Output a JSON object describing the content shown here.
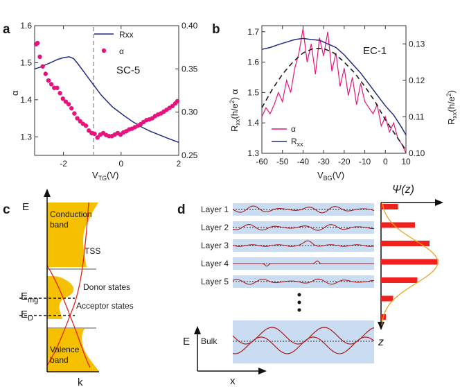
{
  "panels": {
    "a": "a",
    "b": "b",
    "c": "c",
    "d": "d"
  },
  "colors": {
    "rxx": "#1f2a80",
    "alpha": "#e8127c",
    "alpha_b": "#e8127c",
    "dashed": "#1a1a1a",
    "band": "#f5c000",
    "tss": "#e02020",
    "layerbg": "#c9dcf2",
    "wave": "#b01818",
    "bar": "#f0201c",
    "gauss": "#f0a020"
  },
  "chart_data": [
    {
      "id": "a",
      "type": "line+scatter",
      "label": "SC-5",
      "xlabel": "V",
      "xlabel_sub": "TG",
      "xlabel_unit": "(V)",
      "ylabel": "α",
      "y2label": "",
      "xlim": [
        -3,
        2
      ],
      "ylim": [
        1.25,
        1.6
      ],
      "y2lim": [
        0.25,
        0.4
      ],
      "xticks": [
        -2,
        0,
        2
      ],
      "yticks": [
        1.3,
        1.4,
        1.5,
        1.6
      ],
      "yticklabels": [
        "1.3",
        "1.4",
        "1.5",
        "1.6"
      ],
      "y2ticks": [
        0.25,
        0.3,
        0.35,
        0.4
      ],
      "y2ticklabels": [
        "0.25",
        "0.30",
        "0.35",
        "0.40"
      ],
      "vline_x": -0.95,
      "legend": [
        {
          "name": "Rxx",
          "style": "line"
        },
        {
          "name": "α",
          "style": "marker"
        }
      ],
      "series": [
        {
          "name": "Rxx",
          "axis": "right",
          "style": "line",
          "x": [
            -3,
            -2.8,
            -2.6,
            -2.4,
            -2.2,
            -2.0,
            -1.8,
            -1.65,
            -1.5,
            -1.3,
            -1.1,
            -0.9,
            -0.7,
            -0.5,
            -0.3,
            -0.1,
            0.1,
            0.4,
            0.7,
            1.0,
            1.3,
            1.6,
            2.0
          ],
          "y": [
            0.35,
            0.352,
            0.355,
            0.358,
            0.361,
            0.363,
            0.364,
            0.362,
            0.356,
            0.347,
            0.338,
            0.329,
            0.32,
            0.313,
            0.306,
            0.301,
            0.296,
            0.289,
            0.283,
            0.278,
            0.274,
            0.27,
            0.265
          ]
        },
        {
          "name": "α",
          "axis": "left",
          "style": "marker",
          "x": [
            -2.95,
            -2.9,
            -2.82,
            -2.72,
            -2.62,
            -2.52,
            -2.42,
            -2.32,
            -2.22,
            -2.12,
            -2.02,
            -1.92,
            -1.82,
            -1.72,
            -1.62,
            -1.52,
            -1.42,
            -1.32,
            -1.22,
            -1.12,
            -1.02,
            -0.92,
            -0.82,
            -0.72,
            -0.62,
            -0.52,
            -0.42,
            -0.32,
            -0.22,
            -0.12,
            -0.02,
            0.08,
            0.18,
            0.28,
            0.38,
            0.48,
            0.58,
            0.68,
            0.78,
            0.88,
            0.98,
            1.08,
            1.18,
            1.28,
            1.38,
            1.48,
            1.58,
            1.68,
            1.78,
            1.88,
            1.95
          ],
          "y": [
            1.55,
            1.553,
            1.516,
            1.49,
            1.47,
            1.452,
            1.442,
            1.432,
            1.432,
            1.418,
            1.403,
            1.395,
            1.388,
            1.377,
            1.363,
            1.35,
            1.342,
            1.335,
            1.33,
            1.317,
            1.31,
            1.308,
            1.298,
            1.306,
            1.31,
            1.305,
            1.302,
            1.302,
            1.306,
            1.31,
            1.306,
            1.312,
            1.315,
            1.32,
            1.322,
            1.326,
            1.33,
            1.334,
            1.34,
            1.345,
            1.347,
            1.35,
            1.356,
            1.36,
            1.363,
            1.368,
            1.373,
            1.378,
            1.383,
            1.39,
            1.396
          ]
        }
      ]
    },
    {
      "id": "b",
      "type": "line",
      "label": "EC-1",
      "xlabel": "V",
      "xlabel_sub": "BG",
      "xlabel_unit": "(V)",
      "ylabel_top": "α",
      "ylabel_bottom": "R",
      "ylabel_bottom_sub": "xx",
      "ylabel_bottom_unit": "(h/e",
      "y2label": "R",
      "y2label_sub": "xx",
      "y2label_unit": "(h/e",
      "sup": "2",
      "close": ")",
      "xlim": [
        -60,
        10
      ],
      "ylim": [
        1.3,
        1.72
      ],
      "y2lim": [
        0.1,
        0.135
      ],
      "xticks": [
        -60,
        -50,
        -40,
        -30,
        -20,
        -10,
        0,
        10
      ],
      "xticklabels": [
        "-60",
        "-50",
        "-40",
        "-30",
        "-20",
        "-10",
        "0",
        "10"
      ],
      "yticks": [
        1.3,
        1.4,
        1.5,
        1.6,
        1.7
      ],
      "yticklabels": [
        "1.3",
        "1.4",
        "1.5",
        "1.6",
        "1.7"
      ],
      "y2ticks": [
        0.1,
        0.11,
        0.12,
        0.13
      ],
      "y2ticklabels": [
        "0.10",
        "0.11",
        "0.12",
        "0.13"
      ],
      "legend": [
        {
          "name": "α",
          "color_key": "alpha_b"
        },
        {
          "name": "R",
          "sub": "xx",
          "color_key": "rxx"
        }
      ],
      "series": [
        {
          "name": "α",
          "axis": "left",
          "x": [
            -60,
            -58,
            -56,
            -54,
            -52,
            -50,
            -48,
            -46,
            -44,
            -42,
            -40,
            -38,
            -36,
            -34,
            -32,
            -30,
            -28,
            -26,
            -24,
            -22,
            -20,
            -18,
            -16,
            -14,
            -12,
            -10,
            -8,
            -6,
            -4,
            -2,
            0,
            2,
            4,
            6,
            8,
            10
          ],
          "y": [
            1.42,
            1.45,
            1.43,
            1.46,
            1.5,
            1.47,
            1.54,
            1.5,
            1.58,
            1.63,
            1.71,
            1.6,
            1.66,
            1.56,
            1.68,
            1.62,
            1.7,
            1.57,
            1.63,
            1.52,
            1.58,
            1.49,
            1.55,
            1.46,
            1.53,
            1.47,
            1.45,
            1.43,
            1.46,
            1.39,
            1.42,
            1.37,
            1.4,
            1.35,
            1.33,
            1.3
          ]
        },
        {
          "name": "Rxx",
          "axis": "right",
          "x": [
            -60,
            -56,
            -52,
            -48,
            -44,
            -40,
            -36,
            -32,
            -28,
            -24,
            -20,
            -16,
            -12,
            -8,
            -4,
            0,
            4,
            8,
            10
          ],
          "y": [
            0.1285,
            0.129,
            0.1298,
            0.1305,
            0.1312,
            0.1315,
            0.1312,
            0.131,
            0.13,
            0.129,
            0.127,
            0.1245,
            0.122,
            0.119,
            0.116,
            0.113,
            0.1105,
            0.107,
            0.105
          ]
        },
        {
          "name": "fit",
          "axis": "left",
          "style": "dashed",
          "x": [
            -60,
            -55,
            -50,
            -45,
            -40,
            -35,
            -30,
            -25,
            -20,
            -15,
            -10,
            -5,
            0,
            5,
            10
          ],
          "y": [
            1.45,
            1.51,
            1.56,
            1.6,
            1.63,
            1.645,
            1.645,
            1.63,
            1.6,
            1.565,
            1.52,
            1.47,
            1.41,
            1.36,
            1.31
          ]
        }
      ]
    }
  ],
  "panel_c": {
    "axis_e": "E",
    "axis_k": "k",
    "conduction_1": "Conduction",
    "conduction_2": "band",
    "valence_1": "Valence",
    "valence_2": "band",
    "tss": "TSS",
    "donor": "Donor states",
    "acceptor": "Acceptor states",
    "emg": "E",
    "emg_sub": "mg",
    "ed": "E",
    "ed_sub": "D"
  },
  "panel_d": {
    "layers": [
      "Layer 1",
      "Layer 2",
      "Layer 3",
      "Layer 4",
      "Layer 5"
    ],
    "bulk": "Bulk",
    "axis_e": "E",
    "axis_x": "x",
    "axis_z": "z",
    "psi": "Ψ(z)",
    "bars": [
      0.35,
      0.7,
      1.0,
      1.18,
      0.75,
      0.25,
      0.1
    ]
  }
}
